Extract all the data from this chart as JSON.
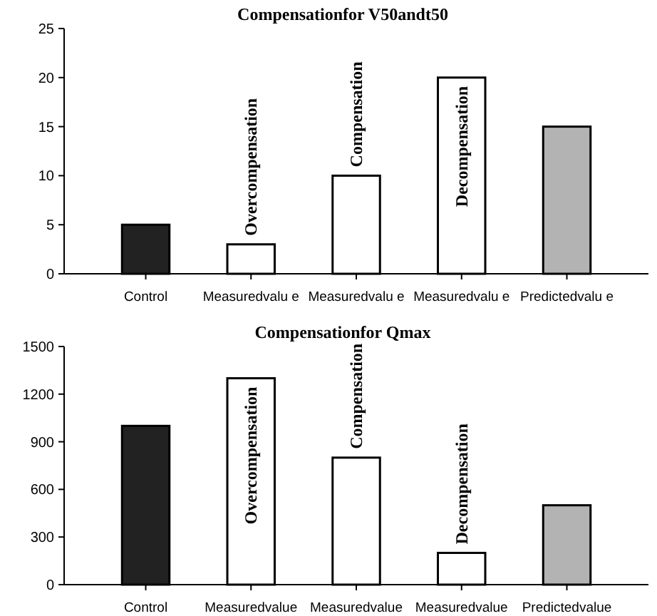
{
  "chart_data": [
    {
      "type": "bar",
      "title": "Compensationfor  V50andt50",
      "categories": [
        "Control",
        "Measuredvalu e",
        "Measuredvalu e",
        "Measuredvalu e",
        "Predictedvalu e"
      ],
      "values": [
        5,
        3,
        10,
        20,
        15
      ],
      "colors": [
        "#222222",
        "#ffffff",
        "#ffffff",
        "#ffffff",
        "#b3b3b3"
      ],
      "ylim": [
        0,
        25
      ],
      "yticks": [
        0,
        5,
        10,
        15,
        20,
        25
      ],
      "grid": false,
      "annotations": [
        "Overcompensation",
        "Compensation",
        "Decompensation"
      ]
    },
    {
      "type": "bar",
      "title": "Compensationfor Qmax",
      "categories": [
        "Control",
        "Measuredvalue",
        "Measuredvalue",
        "Measuredvalue",
        "Predictedvalue"
      ],
      "values": [
        1000,
        1300,
        800,
        200,
        500
      ],
      "colors": [
        "#222222",
        "#ffffff",
        "#ffffff",
        "#ffffff",
        "#b3b3b3"
      ],
      "ylim": [
        0,
        1500
      ],
      "yticks": [
        0,
        300,
        600,
        900,
        1200,
        1500
      ],
      "grid": false,
      "annotations": [
        "Overcompensation",
        "Compensation",
        "Decompensation"
      ]
    }
  ]
}
